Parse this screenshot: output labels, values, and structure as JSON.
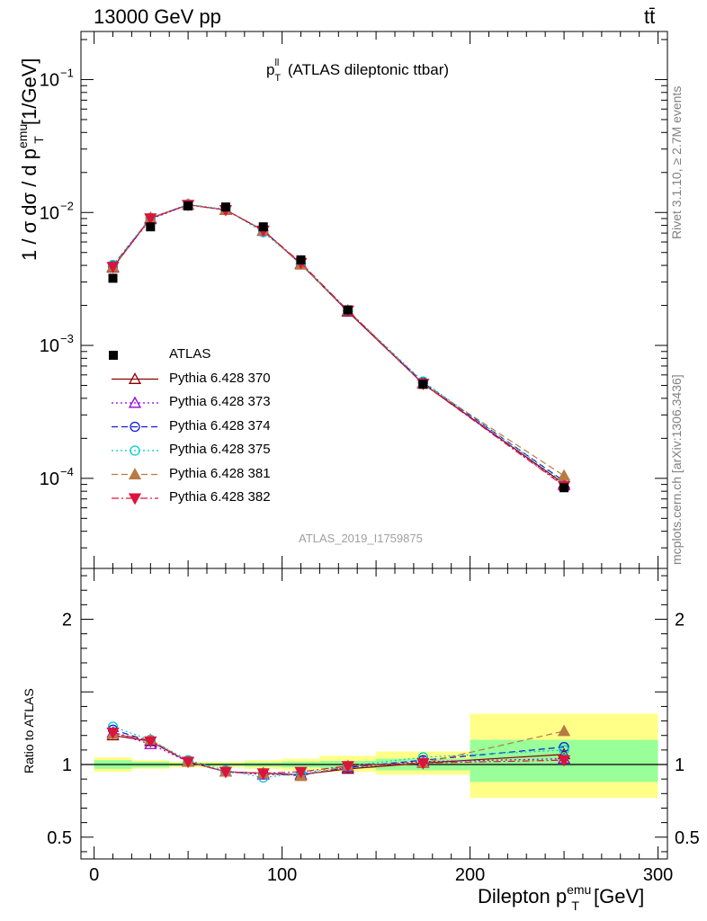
{
  "header": {
    "energy": "13000 GeV pp",
    "process": "tt̄"
  },
  "observable": {
    "symbol": "p",
    "superscript": "ll",
    "subscript": "T",
    "description": "(ATLAS dileptonic ttbar)"
  },
  "analysis_id": "ATLAS_2019_I1759875",
  "side_text": {
    "rivet": "Rivet 3.1.10, ≥ 2.7M events",
    "mcplots": "mcplots.cern.ch [arXiv:1306.3436]"
  },
  "y_label_top": {
    "prefix": "1 / σ  dσ / d p",
    "superscript": "emu",
    "subscript": "T",
    "suffix": "[1/GeV]"
  },
  "y_label_ratio": "Ratio to ATLAS",
  "x_label": {
    "prefix": "Dilepton p",
    "superscript": "emu",
    "subscript": "T",
    "suffix": "[GeV]"
  },
  "colors": {
    "data": "#000000",
    "band_inner": "#99ff99",
    "band_outer": "#ffff88"
  },
  "chart_data": {
    "type": "line",
    "x_scale": "linear",
    "y_scale_top": "log",
    "x": [
      10,
      30,
      50,
      70,
      90,
      110,
      135,
      175,
      250
    ],
    "bin_edges": [
      0,
      20,
      40,
      60,
      80,
      100,
      120,
      150,
      200,
      300
    ],
    "xlim": [
      -7,
      305
    ],
    "ylim_top": [
      2.1e-05,
      0.23
    ],
    "ylim_ratio": [
      0.35,
      2.35
    ],
    "x_ticks": [
      "0",
      "100",
      "200",
      "300"
    ],
    "y_ticks_top": [
      "10^-4",
      "10^-3",
      "10^-2",
      "10^-1"
    ],
    "y_ticks_ratio": [
      "0.5",
      "1",
      "2"
    ],
    "data": {
      "name": "ATLAS",
      "values": [
        0.0032,
        0.0078,
        0.0112,
        0.011,
        0.0078,
        0.0044,
        0.00185,
        0.00051,
        8.5e-05
      ]
    },
    "ratio_band_inner": [
      [
        0.97,
        1.03
      ],
      [
        0.98,
        1.02
      ],
      [
        0.99,
        1.01
      ],
      [
        0.99,
        1.01
      ],
      [
        0.985,
        1.015
      ],
      [
        0.98,
        1.02
      ],
      [
        0.975,
        1.025
      ],
      [
        0.96,
        1.04
      ],
      [
        0.88,
        1.17
      ]
    ],
    "ratio_band_outer": [
      [
        0.95,
        1.05
      ],
      [
        0.97,
        1.03
      ],
      [
        0.98,
        1.02
      ],
      [
        0.98,
        1.02
      ],
      [
        0.97,
        1.03
      ],
      [
        0.96,
        1.04
      ],
      [
        0.95,
        1.06
      ],
      [
        0.93,
        1.09
      ],
      [
        0.77,
        1.35
      ]
    ],
    "series": [
      {
        "name": "Pythia 6.428 370",
        "color": "#8b0000",
        "dash": "",
        "marker": "triangle-open",
        "ratio": [
          1.2,
          1.16,
          1.02,
          0.95,
          0.94,
          0.93,
          0.97,
          1.01,
          1.07
        ]
      },
      {
        "name": "Pythia 6.428 373",
        "color": "#9400d3",
        "dash": "2,3",
        "marker": "triangle-open",
        "ratio": [
          1.22,
          1.14,
          1.02,
          0.95,
          0.93,
          0.93,
          0.98,
          1.02,
          1.04
        ]
      },
      {
        "name": "Pythia 6.428 374",
        "color": "#1515d6",
        "dash": "7,4",
        "marker": "circle-open",
        "ratio": [
          1.24,
          1.16,
          1.02,
          0.95,
          0.94,
          0.93,
          0.98,
          1.03,
          1.12
        ]
      },
      {
        "name": "Pythia 6.428 375",
        "color": "#00cccc",
        "dash": "2,3",
        "marker": "circle-open",
        "ratio": [
          1.26,
          1.17,
          1.03,
          0.96,
          0.91,
          0.94,
          0.99,
          1.05,
          1.1
        ]
      },
      {
        "name": "Pythia 6.428 381",
        "color": "#b87a42",
        "dash": "7,4",
        "marker": "triangle-filled",
        "ratio": [
          1.21,
          1.17,
          1.02,
          0.95,
          0.94,
          0.92,
          0.99,
          1.01,
          1.23
        ]
      },
      {
        "name": "Pythia 6.428 382",
        "color": "#dc143c",
        "dash": "8,3,2,3",
        "marker": "triangle-down-filled",
        "ratio": [
          1.22,
          1.16,
          1.02,
          0.95,
          0.94,
          0.95,
          0.99,
          1.01,
          1.03
        ]
      }
    ]
  }
}
